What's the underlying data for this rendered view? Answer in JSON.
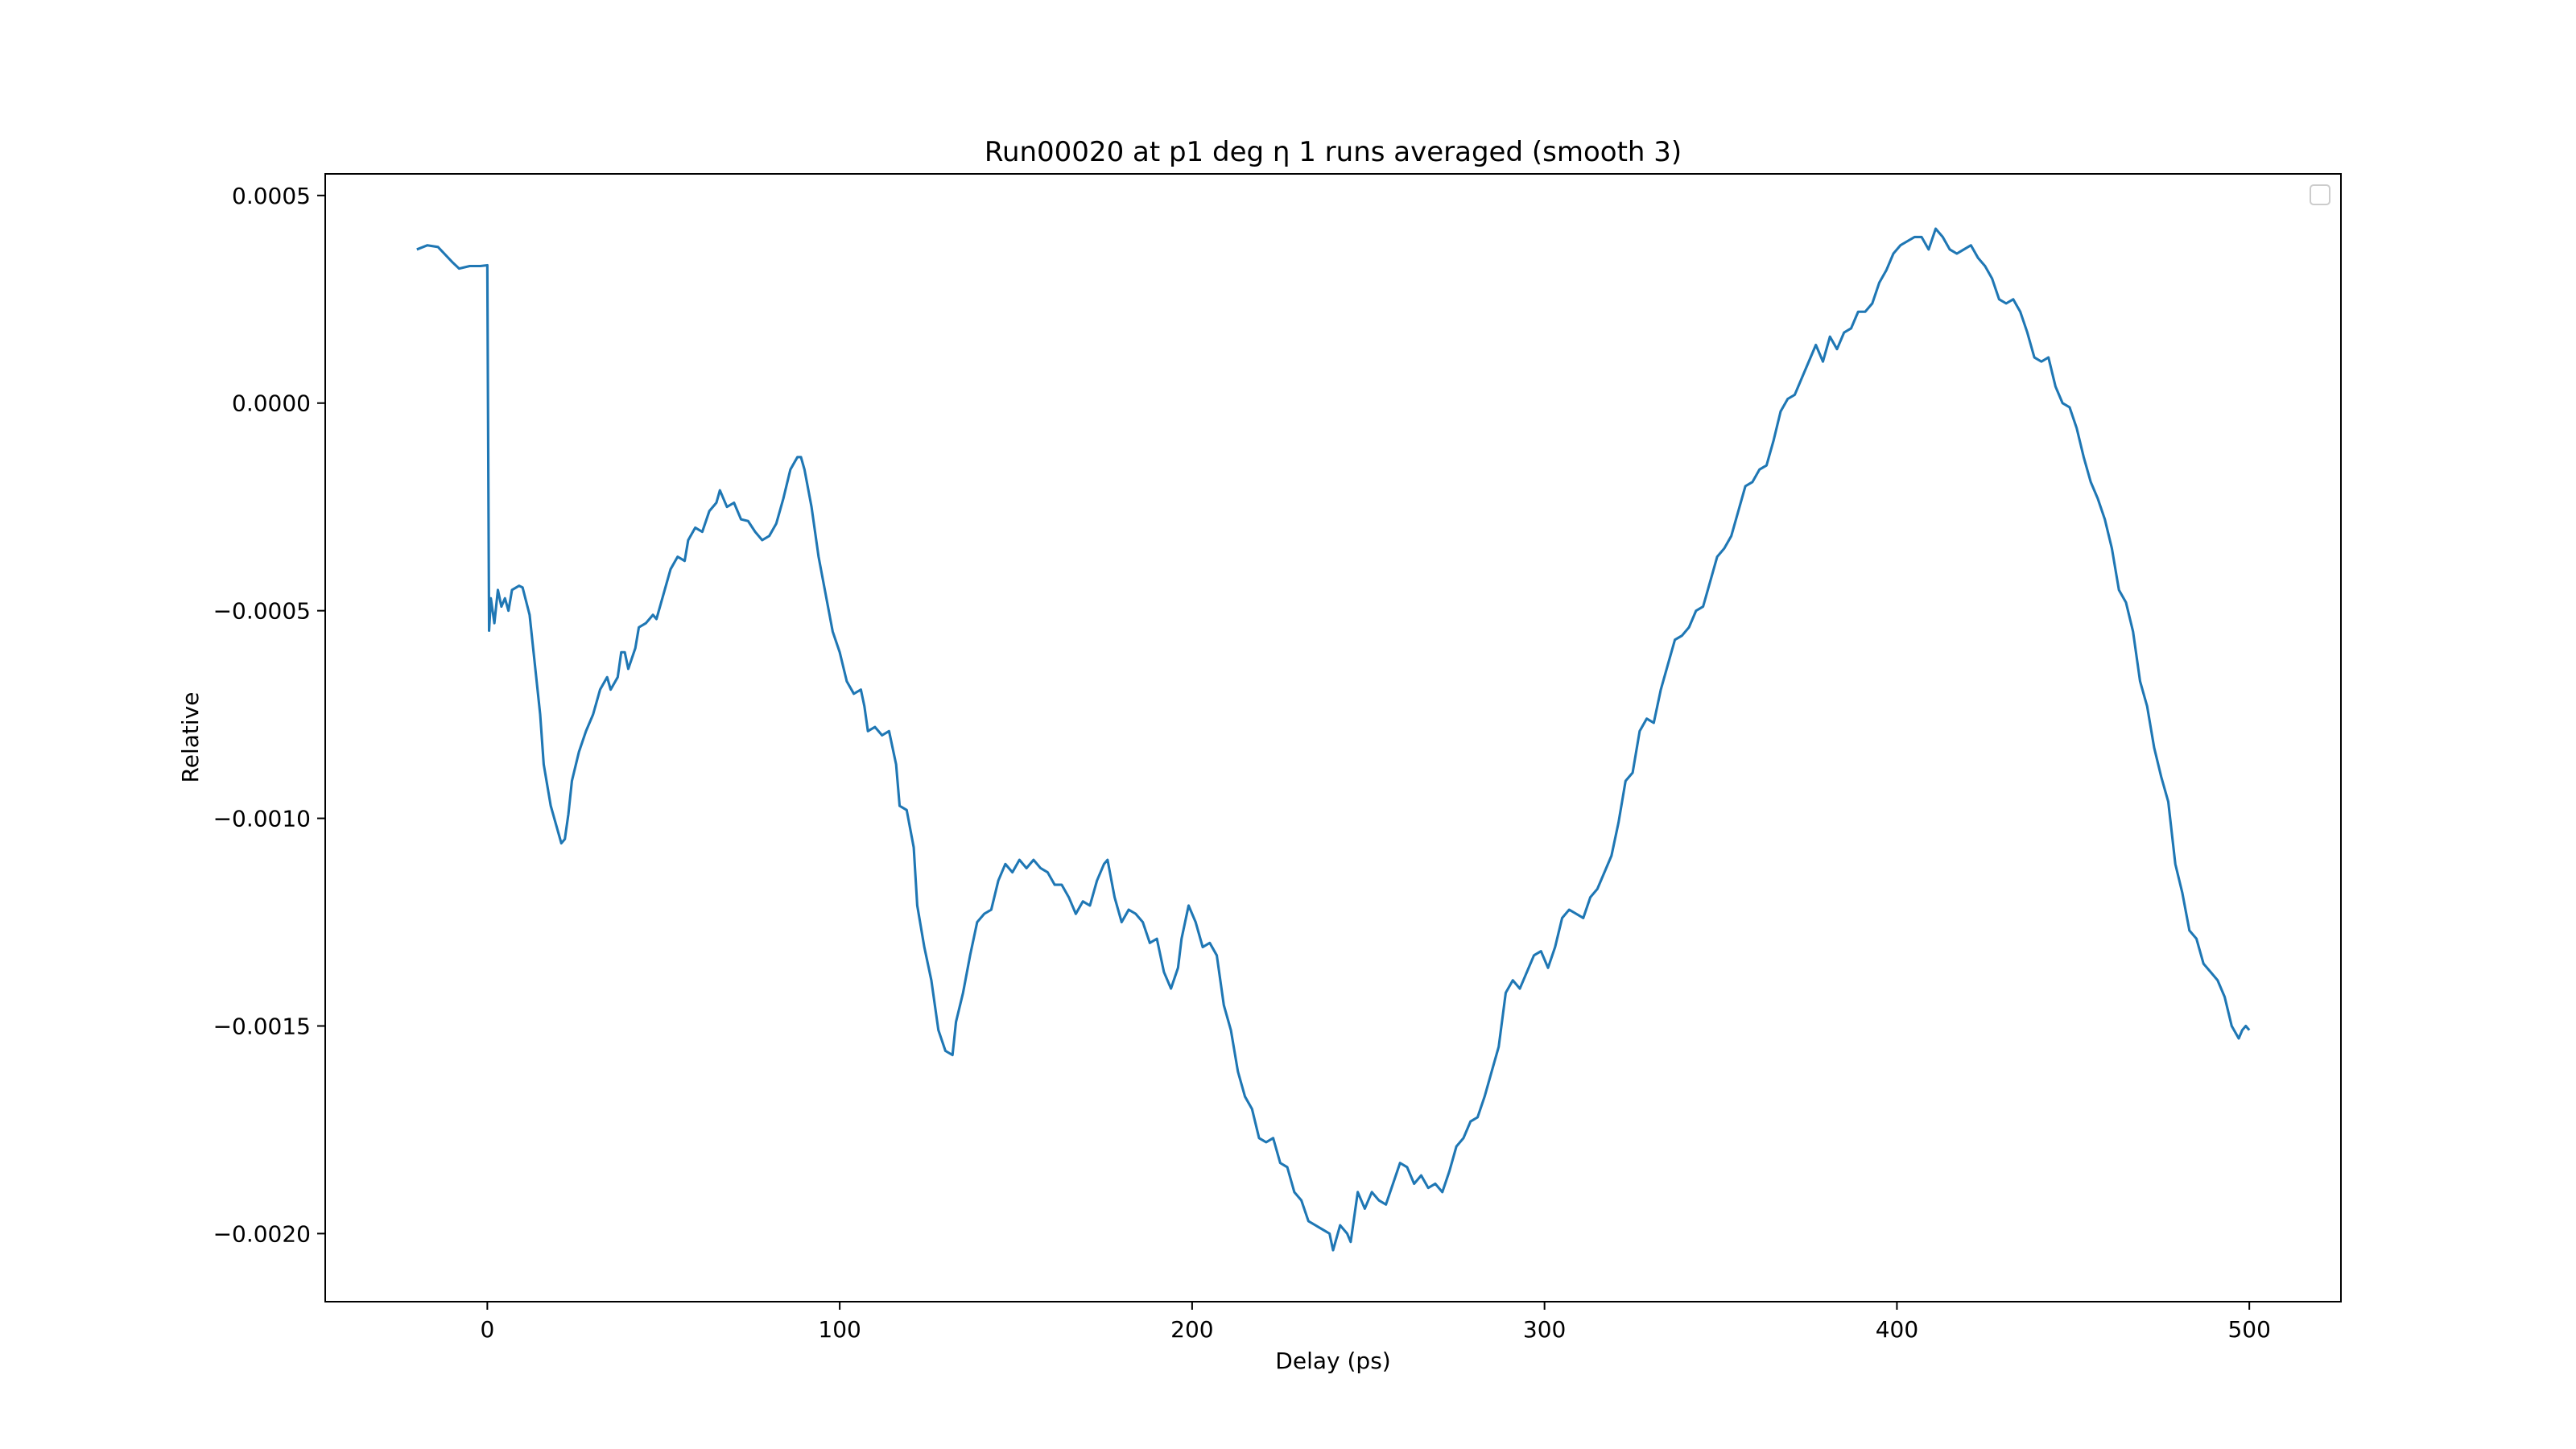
{
  "chart_data": {
    "type": "line",
    "title": "Run00020 at p1 deg η 1 runs averaged (smooth 3)",
    "xlabel": "Delay (ps)",
    "ylabel": "Relative",
    "x": [
      -20,
      -17,
      -14,
      -10,
      -8,
      -5,
      -2,
      0,
      0.5,
      1,
      2,
      3,
      4,
      5,
      6,
      7,
      9,
      10,
      12,
      13,
      15,
      16,
      18,
      20,
      21,
      22,
      23,
      24,
      26,
      28,
      30,
      32,
      34,
      35,
      37,
      38,
      39,
      40,
      42,
      43,
      45,
      47,
      48,
      50,
      52,
      54,
      56,
      57,
      59,
      61,
      63,
      65,
      66,
      68,
      70,
      72,
      74,
      76,
      78,
      80,
      82,
      84,
      86,
      88,
      89,
      90,
      92,
      94,
      96,
      98,
      100,
      102,
      104,
      106,
      107,
      108,
      110,
      112,
      114,
      116,
      117,
      119,
      121,
      122,
      124,
      126,
      128,
      130,
      132,
      133,
      135,
      137,
      139,
      141,
      143,
      145,
      147,
      149,
      151,
      153,
      155,
      157,
      159,
      161,
      163,
      165,
      167,
      169,
      171,
      173,
      175,
      176,
      178,
      180,
      182,
      184,
      186,
      188,
      190,
      192,
      194,
      196,
      197,
      199,
      201,
      203,
      205,
      207,
      209,
      211,
      213,
      215,
      217,
      219,
      221,
      223,
      225,
      227,
      229,
      231,
      233,
      235,
      237,
      239,
      240,
      242,
      244,
      245,
      247,
      249,
      251,
      253,
      255,
      257,
      259,
      261,
      263,
      265,
      267,
      269,
      271,
      273,
      275,
      277,
      279,
      281,
      283,
      285,
      287,
      289,
      291,
      293,
      295,
      297,
      299,
      301,
      303,
      305,
      307,
      309,
      311,
      313,
      315,
      317,
      319,
      321,
      323,
      325,
      327,
      329,
      331,
      333,
      335,
      337,
      339,
      341,
      343,
      345,
      347,
      349,
      351,
      353,
      355,
      357,
      359,
      361,
      363,
      365,
      367,
      369,
      371,
      373,
      375,
      377,
      379,
      381,
      383,
      385,
      387,
      389,
      391,
      393,
      395,
      397,
      399,
      401,
      403,
      405,
      407,
      409,
      411,
      413,
      415,
      417,
      419,
      421,
      423,
      425,
      427,
      429,
      431,
      433,
      435,
      437,
      439,
      441,
      443,
      445,
      447,
      449,
      451,
      453,
      455,
      457,
      459,
      461,
      463,
      465,
      467,
      469,
      471,
      473,
      475,
      477,
      479,
      481,
      483,
      485,
      487,
      489,
      491,
      493,
      495,
      497,
      498,
      499,
      500
    ],
    "series": [
      {
        "color": "#1f77b4",
        "values": [
          0.00037,
          0.00038,
          0.000376,
          0.00034,
          0.000324,
          0.00033,
          0.00033,
          0.000332,
          -0.000548,
          -0.00047,
          -0.00053,
          -0.00045,
          -0.00049,
          -0.00047,
          -0.0005,
          -0.00045,
          -0.00044,
          -0.000444,
          -0.00051,
          -0.00059,
          -0.00075,
          -0.00087,
          -0.00097,
          -0.00103,
          -0.00106,
          -0.00105,
          -0.00099,
          -0.00091,
          -0.00084,
          -0.00079,
          -0.00075,
          -0.00069,
          -0.00066,
          -0.00069,
          -0.00066,
          -0.0006,
          -0.0006,
          -0.00064,
          -0.00059,
          -0.00054,
          -0.00053,
          -0.00051,
          -0.00052,
          -0.00046,
          -0.0004,
          -0.00037,
          -0.00038,
          -0.00033,
          -0.0003,
          -0.00031,
          -0.00026,
          -0.00024,
          -0.00021,
          -0.00025,
          -0.00024,
          -0.00028,
          -0.000284,
          -0.00031,
          -0.00033,
          -0.00032,
          -0.00029,
          -0.00023,
          -0.00016,
          -0.00013,
          -0.00013,
          -0.00016,
          -0.00025,
          -0.00037,
          -0.00046,
          -0.00055,
          -0.0006,
          -0.00067,
          -0.0007,
          -0.00069,
          -0.00073,
          -0.00079,
          -0.00078,
          -0.0008,
          -0.00079,
          -0.00087,
          -0.00097,
          -0.00098,
          -0.00107,
          -0.00121,
          -0.00131,
          -0.00139,
          -0.00151,
          -0.00156,
          -0.00157,
          -0.00149,
          -0.00142,
          -0.00133,
          -0.00125,
          -0.00123,
          -0.00122,
          -0.00115,
          -0.00111,
          -0.00113,
          -0.0011,
          -0.00112,
          -0.0011,
          -0.00112,
          -0.00113,
          -0.00116,
          -0.00116,
          -0.00119,
          -0.00123,
          -0.0012,
          -0.00121,
          -0.00115,
          -0.00111,
          -0.0011,
          -0.00119,
          -0.00125,
          -0.00122,
          -0.00123,
          -0.00125,
          -0.0013,
          -0.00129,
          -0.00137,
          -0.00141,
          -0.00136,
          -0.00129,
          -0.00121,
          -0.00125,
          -0.00131,
          -0.0013,
          -0.00133,
          -0.00145,
          -0.00151,
          -0.00161,
          -0.00167,
          -0.0017,
          -0.00177,
          -0.00178,
          -0.00177,
          -0.00183,
          -0.00184,
          -0.0019,
          -0.00192,
          -0.00197,
          -0.00198,
          -0.00199,
          -0.002,
          -0.00204,
          -0.00198,
          -0.002,
          -0.00202,
          -0.0019,
          -0.00194,
          -0.0019,
          -0.00192,
          -0.00193,
          -0.00188,
          -0.00183,
          -0.00184,
          -0.00188,
          -0.00186,
          -0.00189,
          -0.00188,
          -0.0019,
          -0.00185,
          -0.00179,
          -0.00177,
          -0.00173,
          -0.00172,
          -0.00167,
          -0.00161,
          -0.00155,
          -0.00142,
          -0.00139,
          -0.00141,
          -0.00137,
          -0.00133,
          -0.00132,
          -0.00136,
          -0.00131,
          -0.00124,
          -0.00122,
          -0.00123,
          -0.00124,
          -0.00119,
          -0.00117,
          -0.00113,
          -0.00109,
          -0.00101,
          -0.00091,
          -0.00089,
          -0.00079,
          -0.00076,
          -0.00077,
          -0.00069,
          -0.00063,
          -0.00057,
          -0.00056,
          -0.00054,
          -0.0005,
          -0.00049,
          -0.00043,
          -0.00037,
          -0.00035,
          -0.00032,
          -0.00026,
          -0.0002,
          -0.00019,
          -0.00016,
          -0.00015,
          -9e-05,
          -2e-05,
          1e-05,
          2e-05,
          6e-05,
          0.0001,
          0.00014,
          0.0001,
          0.00016,
          0.00013,
          0.00017,
          0.00018,
          0.00022,
          0.00022,
          0.00024,
          0.00029,
          0.00032,
          0.00036,
          0.00038,
          0.00039,
          0.0004,
          0.0004,
          0.00037,
          0.00042,
          0.0004,
          0.00037,
          0.00036,
          0.00037,
          0.00038,
          0.00035,
          0.00033,
          0.0003,
          0.00025,
          0.00024,
          0.00025,
          0.00022,
          0.00017,
          0.00011,
          0.0001,
          0.00011,
          4e-05,
          0,
          -1e-05,
          -6e-05,
          -0.00013,
          -0.00019,
          -0.00023,
          -0.00028,
          -0.00035,
          -0.00045,
          -0.00048,
          -0.00055,
          -0.00067,
          -0.00073,
          -0.00083,
          -0.0009,
          -0.00096,
          -0.00111,
          -0.00118,
          -0.00127,
          -0.00129,
          -0.00135,
          -0.00137,
          -0.00139,
          -0.00143,
          -0.0015,
          -0.00153,
          -0.00151,
          -0.0015,
          -0.00151
        ]
      }
    ],
    "xlim": [
      -46,
      526
    ],
    "xticks": [
      0,
      100,
      200,
      300,
      400,
      500
    ],
    "ylim": [
      -0.002164,
      0.000552
    ],
    "yticks": [
      {
        "value": -0.002,
        "label": "−0.0020"
      },
      {
        "value": -0.0015,
        "label": "−0.0015"
      },
      {
        "value": -0.001,
        "label": "−0.0010"
      },
      {
        "value": -0.0005,
        "label": "−0.0005"
      },
      {
        "value": 0,
        "label": "0.0000"
      },
      {
        "value": 0.0005,
        "label": "0.0005"
      }
    ],
    "grid": false,
    "legend": "upper right"
  }
}
